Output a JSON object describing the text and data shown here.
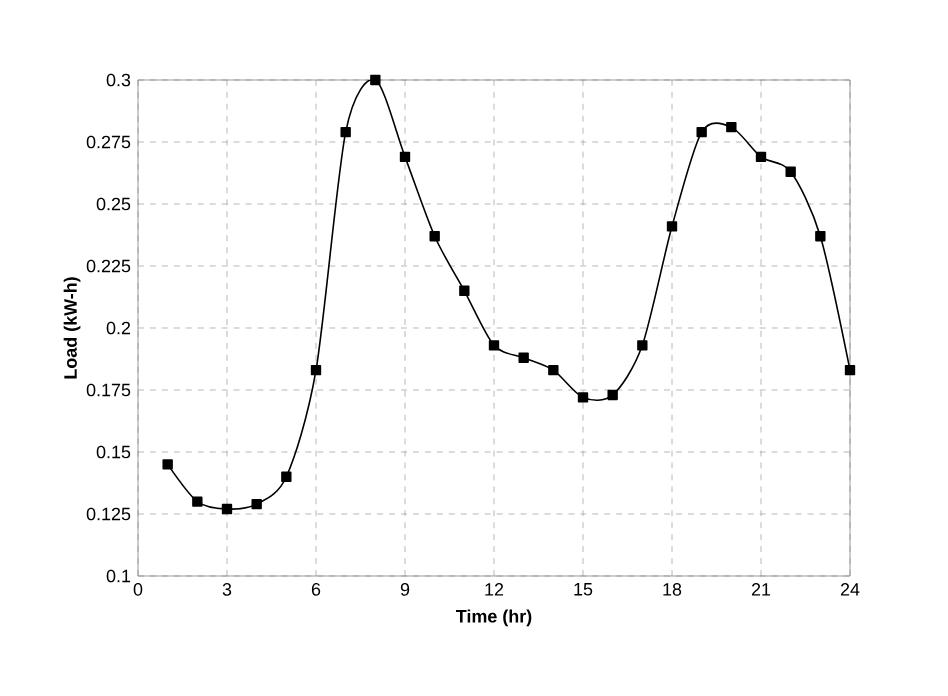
{
  "chart_data": {
    "type": "line",
    "xlabel": "Time (hr)",
    "ylabel": "Load (kW-h)",
    "x": [
      1,
      2,
      3,
      4,
      5,
      6,
      7,
      8,
      9,
      10,
      11,
      12,
      13,
      14,
      15,
      16,
      17,
      18,
      19,
      20,
      21,
      22,
      23,
      24
    ],
    "series": [
      {
        "color": "#000000",
        "values": [
          0.145,
          0.13,
          0.127,
          0.129,
          0.14,
          0.183,
          0.279,
          0.3,
          0.269,
          0.237,
          0.215,
          0.193,
          0.188,
          0.183,
          0.172,
          0.173,
          0.193,
          0.241,
          0.279,
          0.281,
          0.269,
          0.263,
          0.237,
          0.183
        ]
      }
    ],
    "xlim": [
      0,
      24
    ],
    "xticks": [
      0,
      3,
      6,
      9,
      12,
      15,
      18,
      21,
      24
    ],
    "ylim": [
      0.1,
      0.3
    ],
    "yticks": [
      0.1,
      0.125,
      0.15,
      0.175,
      0.2,
      0.225,
      0.25,
      0.275,
      0.3
    ],
    "grid": true,
    "marker": "square",
    "line_style": "solid"
  }
}
